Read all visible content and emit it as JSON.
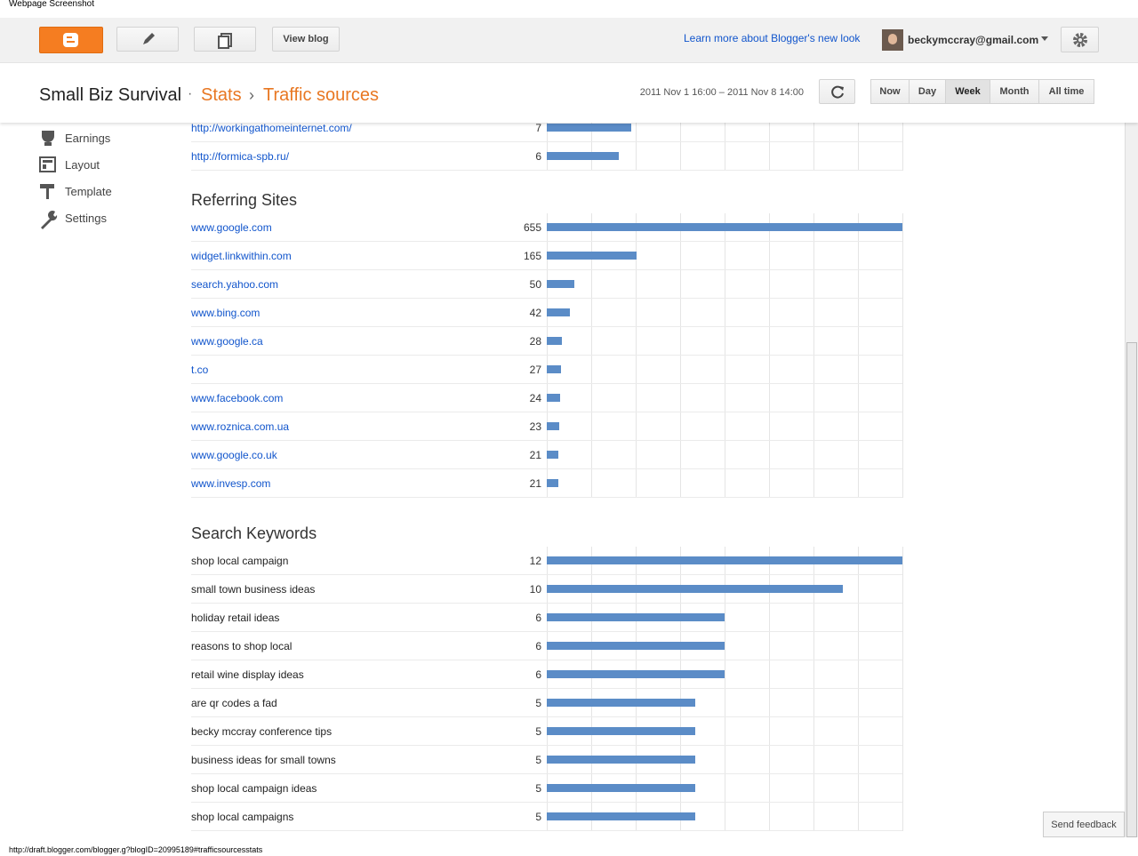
{
  "window_title": "Webpage Screenshot",
  "toolbar": {
    "view_blog": "View blog",
    "learn_more": "Learn more about Blogger's new look",
    "account": "beckymccray@gmail.com"
  },
  "header": {
    "blog": "Small Biz Survival",
    "stats": "Stats",
    "section": "Traffic sources",
    "date_range": "2011 Nov 1 16:00 – 2011 Nov 8 14:00",
    "ranges": [
      "Now",
      "Day",
      "Week",
      "Month",
      "All time"
    ],
    "selected_range": "Week"
  },
  "sidebar": [
    "Earnings",
    "Layout",
    "Template",
    "Settings"
  ],
  "referring_urls": {
    "rows": [
      {
        "label": "http://workingathomeinternet.com/",
        "value": 7
      },
      {
        "label": "http://formica-spb.ru/",
        "value": 6
      }
    ]
  },
  "referring_sites": {
    "title": "Referring Sites",
    "rows": [
      {
        "label": "www.google.com",
        "value": 655
      },
      {
        "label": "widget.linkwithin.com",
        "value": 165
      },
      {
        "label": "search.yahoo.com",
        "value": 50
      },
      {
        "label": "www.bing.com",
        "value": 42
      },
      {
        "label": "www.google.ca",
        "value": 28
      },
      {
        "label": "t.co",
        "value": 27
      },
      {
        "label": "www.facebook.com",
        "value": 24
      },
      {
        "label": "www.roznica.com.ua",
        "value": 23
      },
      {
        "label": "www.google.co.uk",
        "value": 21
      },
      {
        "label": "www.invesp.com",
        "value": 21
      }
    ]
  },
  "search_keywords": {
    "title": "Search Keywords",
    "rows": [
      {
        "label": "shop local campaign",
        "value": 12
      },
      {
        "label": "small town business ideas",
        "value": 10
      },
      {
        "label": "holiday retail ideas",
        "value": 6
      },
      {
        "label": "reasons to shop local",
        "value": 6
      },
      {
        "label": "retail wine display ideas",
        "value": 6
      },
      {
        "label": "are qr codes a fad",
        "value": 5
      },
      {
        "label": "becky mccray conference tips",
        "value": 5
      },
      {
        "label": "business ideas for small towns",
        "value": 5
      },
      {
        "label": "shop local campaign ideas",
        "value": 5
      },
      {
        "label": "shop local campaigns",
        "value": 5
      }
    ]
  },
  "feedback": "Send feedback",
  "status_url": "http://draft.blogger.com/blogger.g?blogID=20995189#trafficsourcesstats"
}
